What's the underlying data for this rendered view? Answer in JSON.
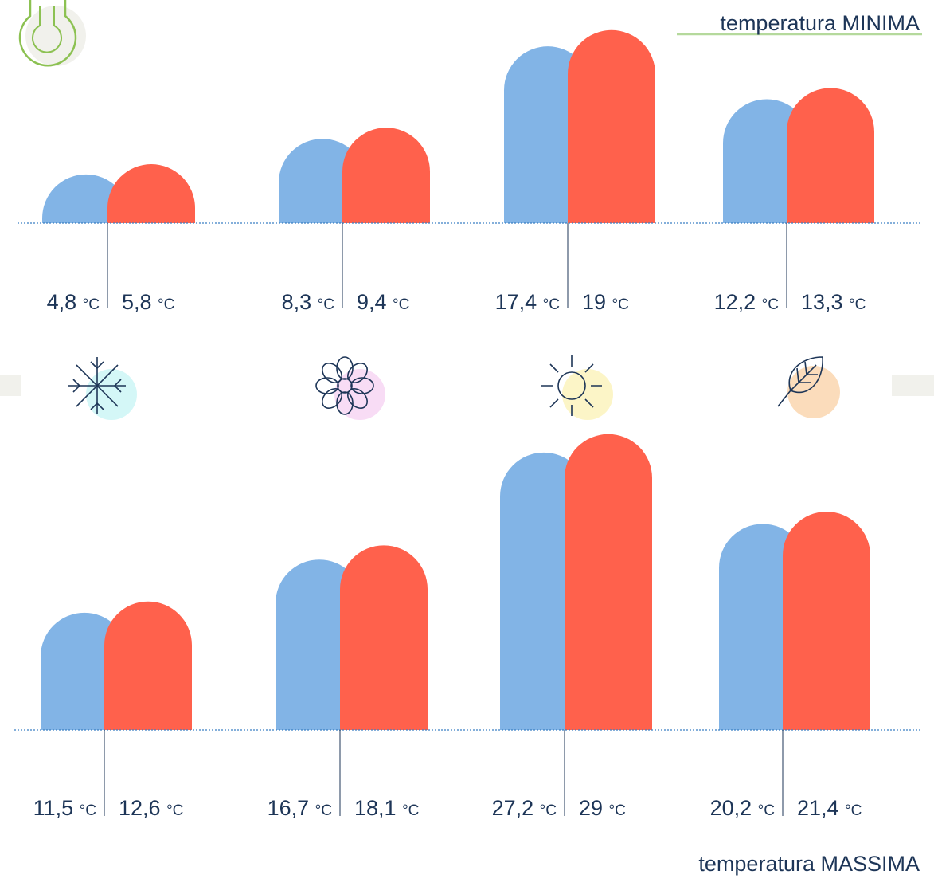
{
  "chart_data": [
    {
      "type": "bar",
      "title": "temperatura MINIMA",
      "ylim": [
        0,
        20
      ],
      "series": [
        {
          "color": "#82b4e6",
          "values": [
            4.8,
            8.3,
            17.4,
            12.2
          ],
          "value_labels": [
            "4,8 °C",
            "8,3 °C",
            "17,4 °C",
            "12,2 °C"
          ]
        },
        {
          "color": "#ff614c",
          "values": [
            5.8,
            9.4,
            19,
            13.3
          ],
          "value_labels": [
            "5,8 °C",
            "9,4 °C",
            "19 °C",
            "13,3 °C"
          ]
        }
      ]
    },
    {
      "type": "bar",
      "title": "temperatura MASSIMA",
      "ylim": [
        0,
        30
      ],
      "series": [
        {
          "color": "#82b4e6",
          "values": [
            11.5,
            16.7,
            27.2,
            20.2
          ],
          "value_labels": [
            "11,5 °C",
            "16,7 °C",
            "27,2 °C",
            "20,2 °C"
          ]
        },
        {
          "color": "#ff614c",
          "values": [
            12.6,
            18.1,
            29,
            21.4
          ],
          "value_labels": [
            "12,6 °C",
            "18,1 °C",
            "29 °C",
            "21,4 °C"
          ]
        }
      ]
    }
  ]
}
